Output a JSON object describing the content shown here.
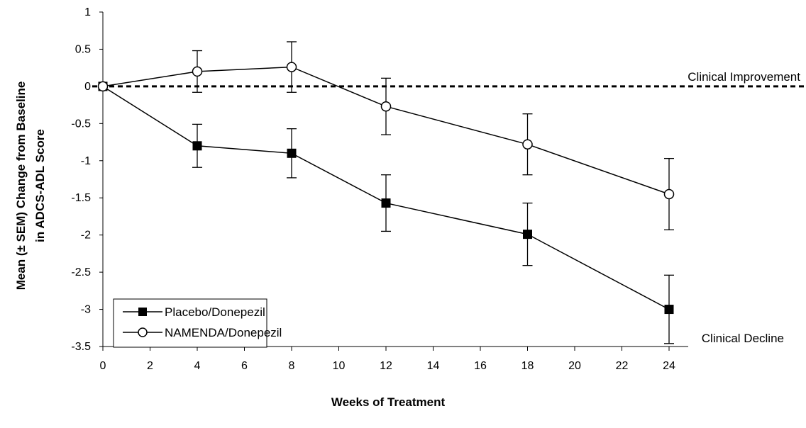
{
  "chart_data": {
    "type": "line",
    "xlabel": "Weeks of Treatment",
    "ylabel_line1": "Mean (± SEM) Change from Baseline",
    "ylabel_line2": "in ADCS-ADL Score",
    "xlim": [
      0,
      24
    ],
    "ylim": [
      -3.5,
      1
    ],
    "x_ticks": [
      0,
      2,
      4,
      6,
      8,
      10,
      12,
      14,
      16,
      18,
      20,
      22,
      24
    ],
    "y_ticks": [
      1,
      0.5,
      0,
      -0.5,
      -1,
      -1.5,
      -2,
      -2.5,
      -3,
      -3.5
    ],
    "grid": false,
    "legend_position": "bottom-left",
    "reference_line": {
      "y": 0,
      "style": "dashed"
    },
    "annotations": {
      "improvement": "Clinical Improvement",
      "decline": "Clinical Decline"
    },
    "series": [
      {
        "name": "Placebo/Donepezil",
        "marker": "filled-square",
        "x": [
          0,
          4,
          8,
          12,
          18,
          24
        ],
        "y": [
          0,
          -0.8,
          -0.9,
          -1.57,
          -1.99,
          -3.0
        ],
        "err": [
          0,
          0.29,
          0.33,
          0.38,
          0.42,
          0.46
        ]
      },
      {
        "name": "NAMENDA/Donepezil",
        "marker": "open-circle",
        "x": [
          0,
          4,
          8,
          12,
          18,
          24
        ],
        "y": [
          0,
          0.2,
          0.26,
          -0.27,
          -0.78,
          -1.45
        ],
        "err": [
          0,
          0.28,
          0.34,
          0.38,
          0.41,
          0.48
        ]
      }
    ]
  },
  "colors": {
    "line": "#000000",
    "marker_fill": "#000000",
    "open_marker_fill": "#ffffff"
  }
}
